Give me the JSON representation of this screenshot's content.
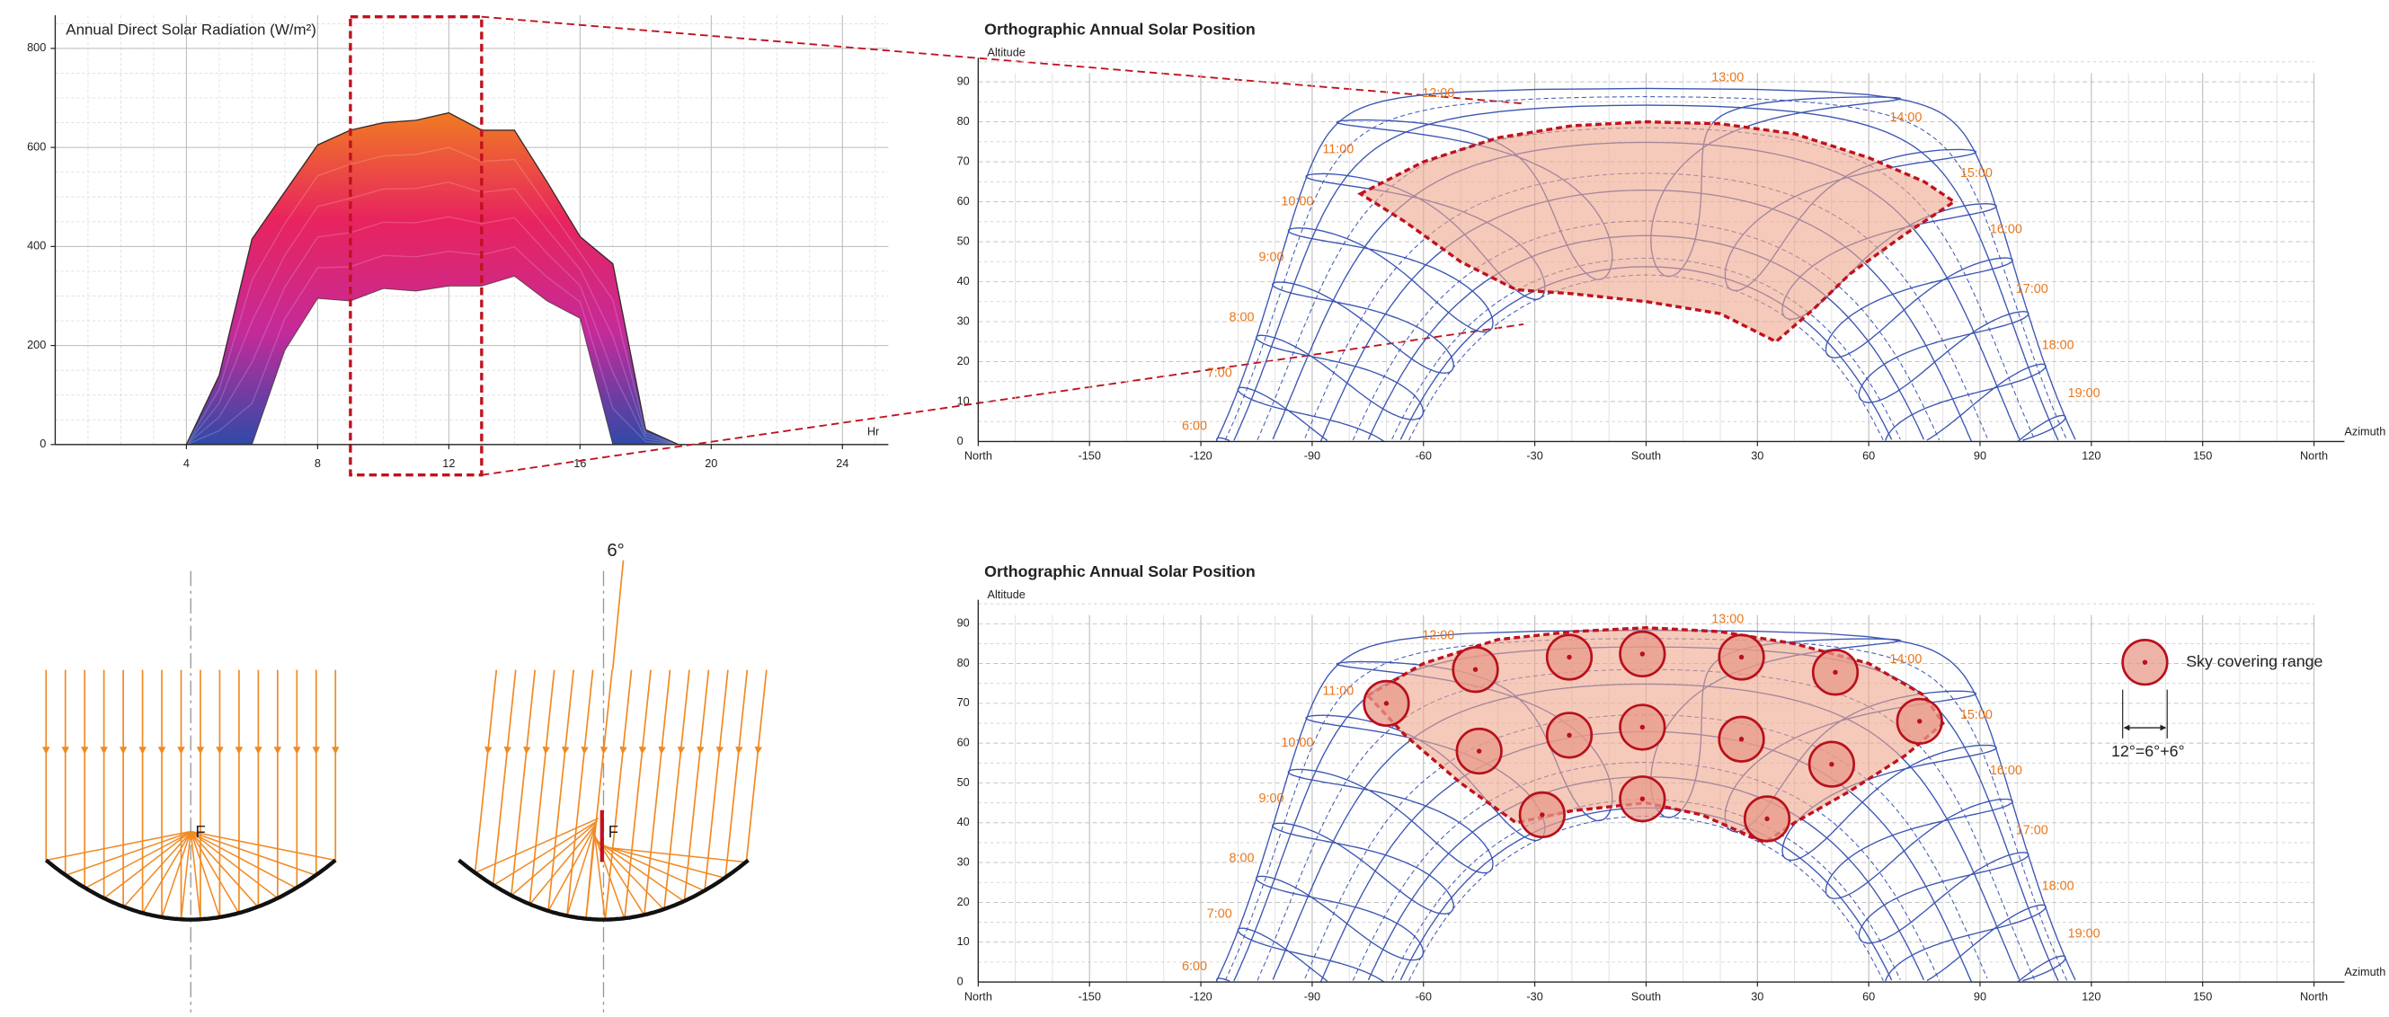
{
  "chart_data": [
    {
      "type": "area",
      "title": "Annual Direct Solar Radiation (W/m²)",
      "x_label": "Hr",
      "x": [
        4,
        5,
        6,
        7,
        8,
        9,
        10,
        11,
        12,
        13,
        14,
        15,
        16,
        17,
        18,
        19
      ],
      "series": [
        {
          "values": [
            0,
            140,
            415,
            510,
            605,
            635,
            650,
            655,
            670,
            635,
            635,
            530,
            420,
            365,
            30,
            0
          ]
        },
        {
          "values": [
            0,
            0,
            0,
            190,
            295,
            290,
            315,
            310,
            320,
            320,
            340,
            290,
            255,
            0,
            0,
            0
          ]
        }
      ],
      "gradient": [
        "#2f4aa8",
        "#c42a9a",
        "#e8245e",
        "#f07f1f"
      ],
      "line_color": "#3a2a2a",
      "xlim": [
        0,
        25.4
      ],
      "xticks": [
        4,
        8,
        12,
        16,
        20,
        24
      ],
      "ylim": [
        0,
        867
      ],
      "yticks": [
        0,
        200,
        400,
        600,
        800
      ],
      "grid": true,
      "highlight_x": [
        9,
        13
      ],
      "highlight_color": "#c0121e"
    },
    {
      "type": "sunpath",
      "title": "Orthographic Annual Solar Position",
      "y_label": "Altitude",
      "x_label": "Azimuth",
      "xlim": [
        -180,
        180
      ],
      "xticks": [
        {
          "value": -180,
          "label": "North"
        },
        -150,
        -120,
        -90,
        -60,
        -30,
        {
          "value": 0,
          "label": "South"
        },
        30,
        60,
        90,
        120,
        150,
        {
          "value": 180,
          "label": "North"
        }
      ],
      "ylim": [
        0,
        96
      ],
      "yticks": [
        0,
        10,
        20,
        30,
        40,
        50,
        60,
        70,
        80,
        90
      ],
      "grid": true,
      "hour_labels": [
        "6:00",
        "7:00",
        "8:00",
        "9:00",
        "10:00",
        "11:00",
        "12:00",
        "13:00",
        "14:00",
        "15:00",
        "16:00",
        "17:00",
        "18:00",
        "19:00"
      ],
      "path_color": "#3d56b3",
      "label_color": "#e8781e",
      "region_color": "#c0121e"
    },
    {
      "type": "sunpath",
      "title": "Orthographic Annual Solar Position",
      "y_label": "Altitude",
      "x_label": "Azimuth",
      "xlim": [
        -180,
        180
      ],
      "xticks": [
        {
          "value": -180,
          "label": "North"
        },
        -150,
        -120,
        -90,
        -60,
        -30,
        {
          "value": 0,
          "label": "South"
        },
        30,
        60,
        90,
        120,
        150,
        {
          "value": 180,
          "label": "North"
        }
      ],
      "ylim": [
        0,
        96
      ],
      "yticks": [
        0,
        10,
        20,
        30,
        40,
        50,
        60,
        70,
        80,
        90
      ],
      "grid": true,
      "hour_labels": [
        "6:00",
        "7:00",
        "8:00",
        "9:00",
        "10:00",
        "11:00",
        "12:00",
        "13:00",
        "14:00",
        "15:00",
        "16:00",
        "17:00",
        "18:00",
        "19:00"
      ],
      "path_color": "#3d56b3",
      "label_color": "#e8781e",
      "region_color": "#c0121e",
      "points": {
        "x": [
          -70,
          -46,
          -20.7,
          -1,
          25.7,
          51,
          73.7,
          -45,
          -20.7,
          -1,
          25.7,
          50,
          -28,
          -1,
          32.6
        ],
        "y": [
          70,
          78.5,
          81.6,
          82.4,
          81.6,
          77.8,
          65.5,
          58,
          62,
          64,
          61,
          54.7,
          42,
          46,
          41
        ]
      },
      "legend_label": "Sky covering range",
      "legend_note": "12°=6°+6°"
    }
  ],
  "diagram": {
    "focus_labels": [
      "F",
      "F"
    ],
    "tilt_label": "6°"
  }
}
